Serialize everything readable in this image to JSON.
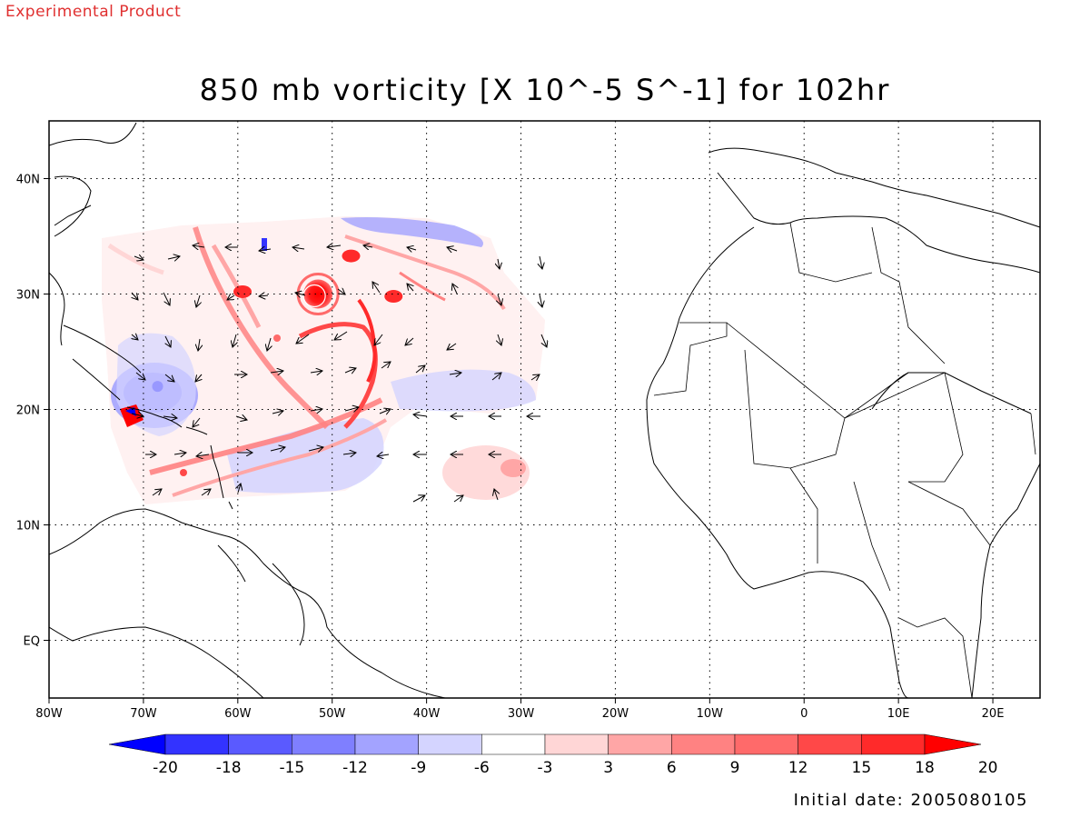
{
  "header": {
    "stamp": "Experimental Product",
    "title": "850 mb vorticity [X 10^-5 S^-1] for 102hr"
  },
  "footer": {
    "init_date_label": "Initial date: 2005080105"
  },
  "map": {
    "lon_range": [
      -80,
      25
    ],
    "lat_range": [
      -5,
      45
    ],
    "lon_ticks": [
      {
        "lon": -80,
        "label": "80W"
      },
      {
        "lon": -70,
        "label": "70W"
      },
      {
        "lon": -60,
        "label": "60W"
      },
      {
        "lon": -50,
        "label": "50W"
      },
      {
        "lon": -40,
        "label": "40W"
      },
      {
        "lon": -30,
        "label": "30W"
      },
      {
        "lon": -20,
        "label": "20W"
      },
      {
        "lon": -10,
        "label": "10W"
      },
      {
        "lon": 0,
        "label": "0"
      },
      {
        "lon": 10,
        "label": "10E"
      },
      {
        "lon": 20,
        "label": "20E"
      }
    ],
    "lat_ticks": [
      {
        "lat": 0,
        "label": "EQ"
      },
      {
        "lat": 10,
        "label": "10N"
      },
      {
        "lat": 20,
        "label": "20N"
      },
      {
        "lat": 30,
        "label": "30N"
      },
      {
        "lat": 40,
        "label": "40N"
      }
    ],
    "gridlines": "dotted",
    "features": [
      {
        "name": "cyclone-core",
        "lon": -51.5,
        "lat": 30,
        "vorticity": 20
      },
      {
        "name": "vortex",
        "lon": -59.5,
        "lat": 30.2,
        "vorticity": 18
      },
      {
        "name": "vortex",
        "lon": -43.5,
        "lat": 29.8,
        "vorticity": 18
      },
      {
        "name": "vortex",
        "lon": -48,
        "lat": 33.3,
        "vorticity": 18
      },
      {
        "name": "negative-region",
        "lon": -68.5,
        "lat": 22,
        "vorticity": -12
      }
    ]
  },
  "colorbar": {
    "levels": [
      "-20",
      "-18",
      "-15",
      "-12",
      "-9",
      "-6",
      "-3",
      "3",
      "6",
      "9",
      "12",
      "15",
      "18",
      "20"
    ],
    "colors": [
      "#0000ff",
      "#3333ff",
      "#5a5aff",
      "#7f7fff",
      "#a3a3ff",
      "#d4d4ff",
      "#ffffff",
      "#ffd6d6",
      "#ffa6a6",
      "#ff8282",
      "#ff6a6a",
      "#ff4848",
      "#ff2a2a",
      "#ff0000"
    ]
  }
}
